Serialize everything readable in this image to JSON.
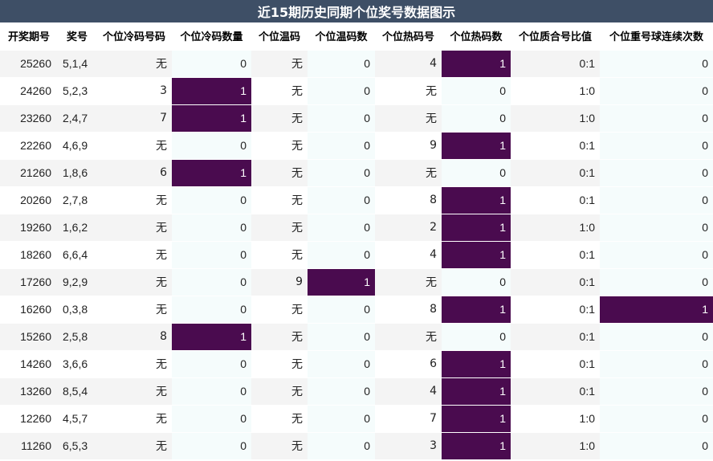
{
  "title": "近15期历史同期个位奖号数据图示",
  "columns": [
    "开奖期号",
    "奖号",
    "个位冷码号码",
    "个位冷码数量",
    "个位温码",
    "个位温码数",
    "个位热码号",
    "个位热码数",
    "个位质合号比值",
    "个位重号球连续次数"
  ],
  "rows": [
    [
      "25260",
      "5,1,4",
      "无",
      "0",
      "无",
      "0",
      "4",
      "1",
      "0:1",
      "0"
    ],
    [
      "24260",
      "5,2,3",
      "3",
      "1",
      "无",
      "0",
      "无",
      "0",
      "1:0",
      "0"
    ],
    [
      "23260",
      "2,4,7",
      "7",
      "1",
      "无",
      "0",
      "无",
      "0",
      "1:0",
      "0"
    ],
    [
      "22260",
      "4,6,9",
      "无",
      "0",
      "无",
      "0",
      "9",
      "1",
      "0:1",
      "0"
    ],
    [
      "21260",
      "1,8,6",
      "6",
      "1",
      "无",
      "0",
      "无",
      "0",
      "0:1",
      "0"
    ],
    [
      "20260",
      "2,7,8",
      "无",
      "0",
      "无",
      "0",
      "8",
      "1",
      "0:1",
      "0"
    ],
    [
      "19260",
      "1,6,2",
      "无",
      "0",
      "无",
      "0",
      "2",
      "1",
      "1:0",
      "0"
    ],
    [
      "18260",
      "6,6,4",
      "无",
      "0",
      "无",
      "0",
      "4",
      "1",
      "0:1",
      "0"
    ],
    [
      "17260",
      "9,2,9",
      "无",
      "0",
      "9",
      "1",
      "无",
      "0",
      "0:1",
      "0"
    ],
    [
      "16260",
      "0,3,8",
      "无",
      "0",
      "无",
      "0",
      "8",
      "1",
      "0:1",
      "1"
    ],
    [
      "15260",
      "2,5,8",
      "8",
      "1",
      "无",
      "0",
      "无",
      "0",
      "0:1",
      "0"
    ],
    [
      "14260",
      "3,6,6",
      "无",
      "0",
      "无",
      "0",
      "6",
      "1",
      "0:1",
      "0"
    ],
    [
      "13260",
      "8,5,4",
      "无",
      "0",
      "无",
      "0",
      "4",
      "1",
      "0:1",
      "0"
    ],
    [
      "12260",
      "4,5,7",
      "无",
      "0",
      "无",
      "0",
      "7",
      "1",
      "1:0",
      "0"
    ],
    [
      "11260",
      "6,5,3",
      "无",
      "0",
      "无",
      "0",
      "3",
      "1",
      "1:0",
      "0"
    ]
  ],
  "highlight_color": "#4a0b4f",
  "header_color": "#3e4f66"
}
